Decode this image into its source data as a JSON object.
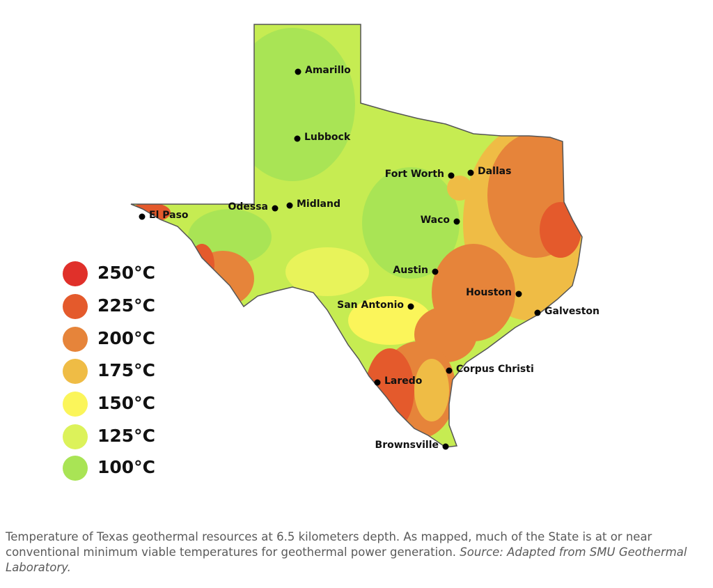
{
  "legend": [
    {
      "label": "250°C",
      "color": "#e0302a"
    },
    {
      "label": "225°C",
      "color": "#e45a2c"
    },
    {
      "label": "200°C",
      "color": "#e6843a"
    },
    {
      "label": "175°C",
      "color": "#efbc45"
    },
    {
      "label": "150°C",
      "color": "#fbf55a"
    },
    {
      "label": "125°C",
      "color": "#dcf25a"
    },
    {
      "label": "100°C",
      "color": "#a9e455"
    }
  ],
  "cities": [
    "Amarillo",
    "Lubbock",
    "Fort Worth",
    "Dallas",
    "Odessa",
    "Midland",
    "El Paso",
    "Waco",
    "Austin",
    "San Antonio",
    "Houston",
    "Galveston",
    "Corpus Christi",
    "Laredo",
    "Brownsville"
  ],
  "caption": {
    "text": "Temperature of Texas geothermal resources at 6.5 kilometers depth. As mapped, much of the State is at or near conventional minimum viable temperatures for geothermal power generation.",
    "source": "Source:  Adapted from SMU Geothermal Laboratory."
  }
}
